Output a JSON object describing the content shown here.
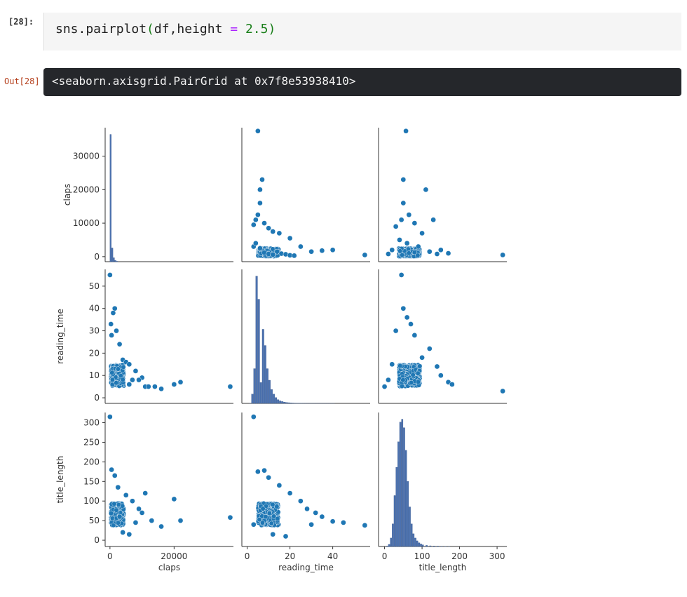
{
  "cell": {
    "in_prompt": "[28]:",
    "out_prompt": "Out[28]",
    "code": {
      "fn": "sns.pairplot",
      "open": "(",
      "args": "df,height ",
      "op": "=",
      "num": " 2.5",
      "close": ")"
    },
    "output_text": "<seaborn.axisgrid.PairGrid at 0x7f8e53938410>"
  },
  "colors": {
    "point": "#1f77b4",
    "bar": "#4c72b0"
  },
  "chart_data": {
    "type": "scatter",
    "title": "",
    "variables": [
      "claps",
      "reading_time",
      "title_length"
    ],
    "axes": {
      "claps": {
        "range": [
          -1500,
          38500
        ],
        "ticks": [
          0,
          20000
        ],
        "yticks": [
          0,
          10000,
          20000,
          30000
        ]
      },
      "reading_time": {
        "range": [
          -2.5,
          57.5
        ],
        "ticks": [
          0,
          20,
          40
        ],
        "yticks": [
          0,
          10,
          20,
          30,
          40,
          50
        ]
      },
      "title_length": {
        "range": [
          -16,
          326
        ],
        "ticks": [
          0,
          100,
          200,
          300
        ],
        "yticks": [
          0,
          50,
          100,
          150,
          200,
          250,
          300
        ]
      }
    },
    "diagonal": {
      "claps": {
        "bins": [
          0,
          500,
          1000,
          1500,
          2000
        ],
        "heights": [
          6500,
          700,
          200,
          60,
          20
        ]
      },
      "reading_time": {
        "bins": [
          1,
          2,
          3,
          4,
          5,
          6,
          7,
          8,
          9,
          10,
          11,
          12,
          13,
          14,
          15,
          16,
          17,
          18,
          19,
          20,
          21,
          22,
          23,
          24,
          25,
          26,
          27,
          28,
          29,
          30,
          31,
          32,
          33,
          34,
          35,
          36,
          37,
          38,
          39,
          40
        ],
        "heights": [
          10,
          4000,
          15000,
          55000,
          45000,
          9000,
          32000,
          25000,
          15000,
          10000,
          6000,
          4000,
          2500,
          1600,
          1100,
          800,
          550,
          400,
          300,
          220,
          160,
          120,
          90,
          70,
          50,
          40,
          30,
          20,
          15,
          12,
          10,
          8,
          6,
          5,
          4,
          3,
          2,
          2,
          1,
          1
        ]
      },
      "title_length": {
        "bins": [
          5,
          10,
          15,
          20,
          25,
          30,
          35,
          40,
          45,
          50,
          55,
          60,
          65,
          70,
          75,
          80,
          85,
          90,
          95,
          100,
          110,
          120,
          130,
          140,
          150,
          160,
          170
        ],
        "heights": [
          30,
          150,
          600,
          1600,
          3600,
          5600,
          7400,
          8800,
          9000,
          8400,
          6800,
          4600,
          2800,
          1600,
          900,
          600,
          400,
          260,
          180,
          120,
          80,
          50,
          40,
          30,
          20,
          12,
          6
        ]
      }
    },
    "series": [
      {
        "name": "",
        "x_var": "reading_time",
        "y_var": "claps",
        "points": [
          [
            5,
            37500
          ],
          [
            7,
            23000
          ],
          [
            6,
            20000
          ],
          [
            6,
            16000
          ],
          [
            5,
            12500
          ],
          [
            4,
            11000
          ],
          [
            8,
            10000
          ],
          [
            3,
            9500
          ],
          [
            10,
            8500
          ],
          [
            12,
            7500
          ],
          [
            15,
            7000
          ],
          [
            20,
            5500
          ],
          [
            25,
            3000
          ],
          [
            30,
            1500
          ],
          [
            35,
            1800
          ],
          [
            40,
            2000
          ],
          [
            55,
            500
          ],
          [
            3,
            3000
          ],
          [
            4,
            4000
          ],
          [
            6,
            2500
          ],
          [
            8,
            1200
          ],
          [
            10,
            800
          ],
          [
            12,
            600
          ],
          [
            14,
            1500
          ],
          [
            16,
            900
          ],
          [
            18,
            700
          ],
          [
            20,
            400
          ],
          [
            22,
            300
          ]
        ]
      },
      {
        "name": "",
        "x_var": "title_length",
        "y_var": "claps",
        "points": [
          [
            57,
            37500
          ],
          [
            50,
            23000
          ],
          [
            110,
            20000
          ],
          [
            50,
            16000
          ],
          [
            65,
            12500
          ],
          [
            45,
            11000
          ],
          [
            80,
            10000
          ],
          [
            130,
            11000
          ],
          [
            30,
            9000
          ],
          [
            100,
            7000
          ],
          [
            150,
            2000
          ],
          [
            170,
            1000
          ],
          [
            315,
            500
          ],
          [
            40,
            5000
          ],
          [
            60,
            4000
          ],
          [
            90,
            3000
          ],
          [
            120,
            1500
          ],
          [
            140,
            800
          ],
          [
            20,
            2000
          ],
          [
            10,
            800
          ]
        ]
      },
      {
        "name": "",
        "x_var": "claps",
        "y_var": "reading_time",
        "points": [
          [
            0,
            55
          ],
          [
            1500,
            40
          ],
          [
            1000,
            38
          ],
          [
            300,
            33
          ],
          [
            2000,
            30
          ],
          [
            500,
            28
          ],
          [
            3000,
            24
          ],
          [
            4000,
            17
          ],
          [
            5000,
            16
          ],
          [
            6000,
            15
          ],
          [
            8000,
            12
          ],
          [
            10000,
            9
          ],
          [
            11000,
            5
          ],
          [
            12000,
            5
          ],
          [
            14000,
            5
          ],
          [
            16000,
            4
          ],
          [
            20000,
            6
          ],
          [
            22000,
            7
          ],
          [
            37500,
            5
          ],
          [
            7000,
            8
          ],
          [
            9000,
            8
          ],
          [
            6000,
            6
          ]
        ]
      },
      {
        "name": "",
        "x_var": "title_length",
        "y_var": "reading_time",
        "points": [
          [
            45,
            55
          ],
          [
            50,
            40
          ],
          [
            60,
            36
          ],
          [
            70,
            33
          ],
          [
            30,
            30
          ],
          [
            80,
            28
          ],
          [
            120,
            22
          ],
          [
            150,
            10
          ],
          [
            170,
            7
          ],
          [
            180,
            6
          ],
          [
            315,
            3
          ],
          [
            0,
            5
          ],
          [
            10,
            8
          ],
          [
            20,
            15
          ],
          [
            100,
            18
          ],
          [
            140,
            14
          ]
        ]
      },
      {
        "name": "",
        "x_var": "claps",
        "y_var": "title_length",
        "points": [
          [
            0,
            315
          ],
          [
            500,
            180
          ],
          [
            1500,
            165
          ],
          [
            2500,
            135
          ],
          [
            5000,
            115
          ],
          [
            7000,
            100
          ],
          [
            9000,
            80
          ],
          [
            11000,
            120
          ],
          [
            13000,
            50
          ],
          [
            16000,
            35
          ],
          [
            20000,
            105
          ],
          [
            22000,
            50
          ],
          [
            37500,
            58
          ],
          [
            6000,
            15
          ],
          [
            4000,
            20
          ],
          [
            8000,
            45
          ],
          [
            3000,
            60
          ],
          [
            10000,
            70
          ]
        ]
      },
      {
        "name": "",
        "x_var": "reading_time",
        "y_var": "title_length",
        "points": [
          [
            3,
            315
          ],
          [
            5,
            175
          ],
          [
            8,
            178
          ],
          [
            10,
            160
          ],
          [
            15,
            140
          ],
          [
            20,
            120
          ],
          [
            25,
            100
          ],
          [
            28,
            80
          ],
          [
            32,
            70
          ],
          [
            35,
            60
          ],
          [
            40,
            48
          ],
          [
            45,
            45
          ],
          [
            55,
            38
          ],
          [
            3,
            40
          ],
          [
            12,
            15
          ],
          [
            18,
            10
          ],
          [
            30,
            40
          ]
        ]
      }
    ]
  }
}
